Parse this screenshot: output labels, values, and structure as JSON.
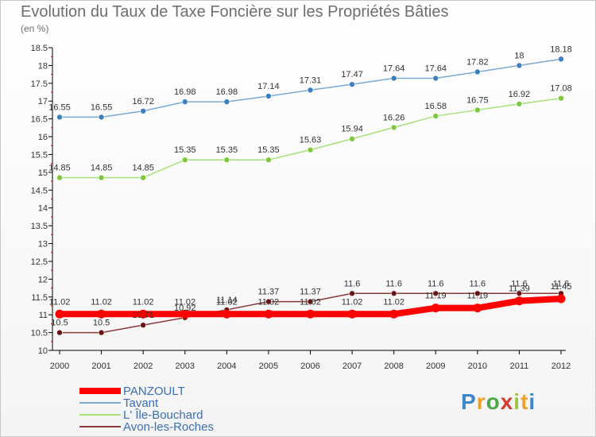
{
  "header": {
    "title": "Evolution du Taux de Taxe Foncière sur les Propriétés Bâties",
    "subtitle": "(en %)"
  },
  "logo": {
    "text": "Proxiti",
    "colors": [
      "#3e86c9",
      "#e8a32c",
      "#4aa84a",
      "#d83b2e",
      "#9ac43a",
      "#e8a32c",
      "#3e86c9"
    ]
  },
  "chart_data": {
    "type": "line",
    "title": "Evolution du Taux de Taxe Foncière sur les Propriétés Bâties",
    "ylabel": "(en %)",
    "xlabel": "",
    "ylim": [
      10,
      18.5
    ],
    "y_ticks": [
      "10",
      "10.5",
      "11",
      "11.5",
      "12",
      "12.5",
      "13",
      "13.5",
      "14",
      "14.5",
      "15",
      "15.5",
      "16",
      "16.5",
      "17",
      "17.5",
      "18",
      "18.5"
    ],
    "categories": [
      "2000",
      "2001",
      "2002",
      "2003",
      "2004",
      "2005",
      "2006",
      "2007",
      "2008",
      "2009",
      "2010",
      "2011",
      "2012"
    ],
    "grid": false,
    "legend_position": "bottom-left",
    "series": [
      {
        "name": "PANZOULT",
        "color": "#ff0000",
        "marker": "#ff0000",
        "width": 8,
        "values": [
          11.02,
          11.02,
          11.02,
          11.02,
          11.02,
          11.02,
          11.02,
          11.02,
          11.02,
          11.19,
          11.19,
          11.39,
          11.45
        ],
        "labels": [
          "11.02",
          "11.02",
          "11.02",
          "11.02",
          "11.02",
          "11.02",
          "11.02",
          "11.02",
          "11.02",
          "11.19",
          "11.19",
          "11.39",
          "11.45"
        ]
      },
      {
        "name": "Tavant",
        "color": "#7aaad2",
        "marker": "#3a7fc0",
        "width": 1.5,
        "values": [
          16.55,
          16.55,
          16.72,
          16.98,
          16.98,
          17.14,
          17.31,
          17.47,
          17.64,
          17.64,
          17.82,
          18,
          18.18
        ],
        "labels": [
          "16.55",
          "16.55",
          "16.72",
          "16.98",
          "16.98",
          "17.14",
          "17.31",
          "17.47",
          "17.64",
          "17.64",
          "17.82",
          "18",
          "18.18"
        ]
      },
      {
        "name": "L' Île-Bouchard",
        "color": "#a8e07a",
        "marker": "#7ec83c",
        "width": 1.5,
        "values": [
          14.85,
          14.85,
          14.85,
          15.35,
          15.35,
          15.35,
          15.63,
          15.94,
          16.26,
          16.58,
          16.75,
          16.92,
          17.08
        ],
        "labels": [
          "14.85",
          "14.85",
          "14.85",
          "15.35",
          "15.35",
          "15.35",
          "15.63",
          "15.94",
          "16.26",
          "16.58",
          "16.75",
          "16.92",
          "17.08"
        ]
      },
      {
        "name": "Avon-les-Roches",
        "color": "#8b3a3a",
        "marker": "#6b1414",
        "width": 1.5,
        "values": [
          10.5,
          10.5,
          10.71,
          10.92,
          11.14,
          11.37,
          11.37,
          11.6,
          11.6,
          11.6,
          11.6,
          11.6,
          11.6
        ],
        "labels": [
          "10.5",
          "10.5",
          "10.71",
          "10.92",
          "11.14",
          "11.37",
          "11.37",
          "11.6",
          "11.6",
          "11.6",
          "11.6",
          "11.6",
          "11.6"
        ]
      }
    ]
  }
}
